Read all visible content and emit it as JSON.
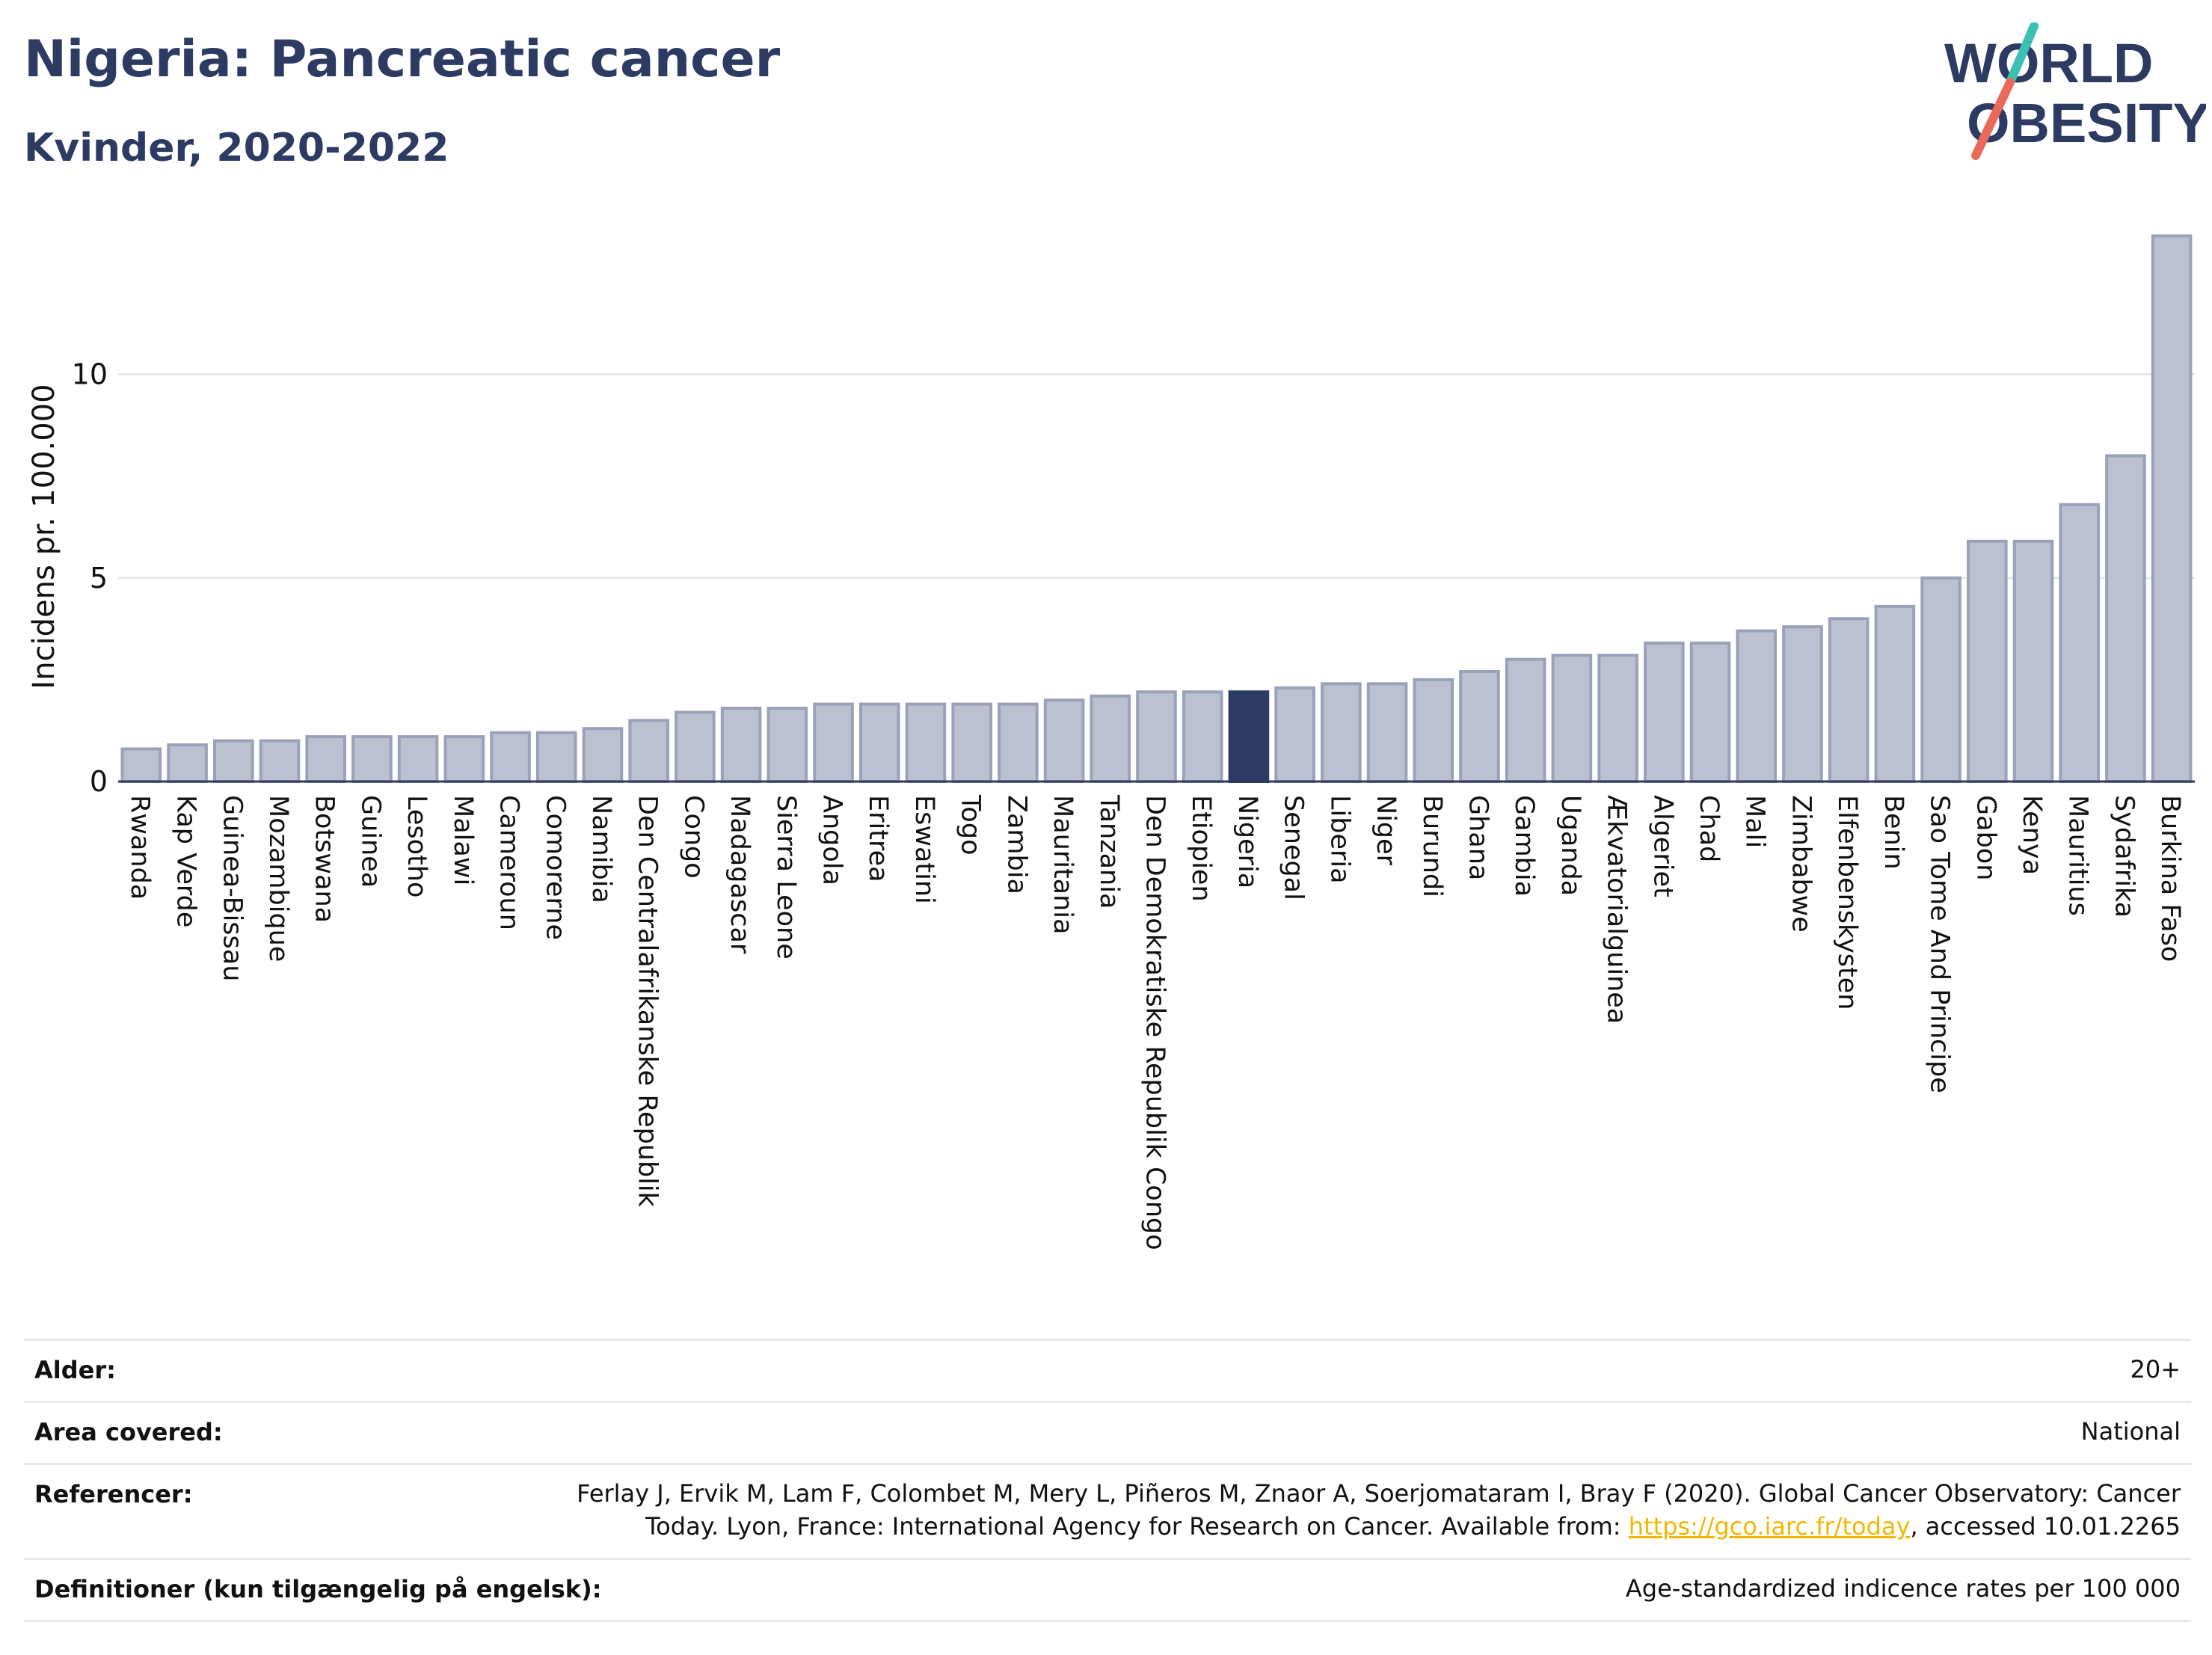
{
  "header": {
    "title": "Nigeria: Pancreatic cancer",
    "subtitle": "Kvinder, 2020-2022"
  },
  "logo": {
    "line1": "WORLD",
    "line2": "OBESITY"
  },
  "colors": {
    "bar": "#bcc1d1",
    "bar_stroke": "#9aa1b9",
    "highlight": "#2d3a62",
    "title": "#2d3a62",
    "logo_teal": "#3dbfb3",
    "logo_coral": "#e96a5b",
    "link": "#f2b705"
  },
  "chart_data": {
    "type": "bar",
    "ylabel": "Incidens pr. 100.000",
    "ylim": [
      0,
      13.5
    ],
    "yticks": [
      0,
      5,
      10
    ],
    "grid": true,
    "highlight": "Nigeria",
    "categories": [
      "Rwanda",
      "Kap Verde",
      "Guinea-Bissau",
      "Mozambique",
      "Botswana",
      "Guinea",
      "Lesotho",
      "Malawi",
      "Cameroun",
      "Comorerne",
      "Namibia",
      "Den Centralafrikanske Republik",
      "Congo",
      "Madagascar",
      "Sierra Leone",
      "Angola",
      "Eritrea",
      "Eswatini",
      "Togo",
      "Zambia",
      "Mauritania",
      "Tanzania",
      "Den Demokratiske Republik Congo",
      "Etiopien",
      "Nigeria",
      "Senegal",
      "Liberia",
      "Niger",
      "Burundi",
      "Ghana",
      "Gambia",
      "Uganda",
      "Ækvatorialguinea",
      "Algeriet",
      "Chad",
      "Mali",
      "Zimbabwe",
      "Elfenbenskysten",
      "Benin",
      "Sao Tome And Principe",
      "Gabon",
      "Kenya",
      "Mauritius",
      "Sydafrika",
      "Burkina Faso"
    ],
    "values": [
      0.8,
      0.9,
      1.0,
      1.0,
      1.1,
      1.1,
      1.1,
      1.1,
      1.2,
      1.2,
      1.3,
      1.5,
      1.7,
      1.8,
      1.8,
      1.9,
      1.9,
      1.9,
      1.9,
      1.9,
      2.0,
      2.1,
      2.2,
      2.2,
      2.2,
      2.3,
      2.4,
      2.4,
      2.5,
      2.7,
      3.0,
      3.1,
      3.1,
      3.4,
      3.4,
      3.7,
      3.8,
      4.0,
      4.3,
      5.0,
      5.9,
      5.9,
      6.8,
      8.0,
      13.4
    ]
  },
  "meta": {
    "age_label": "Alder:",
    "age_value": "20+",
    "area_label": "Area covered:",
    "area_value": "National",
    "ref_label": "Referencer:",
    "ref_line1": "Ferlay J, Ervik M, Lam F, Colombet M, Mery L, Piñeros M, Znaor A, Soerjomataram I, Bray F (2020). Global Cancer Observatory: Cancer",
    "ref_line2_pre": "Today. Lyon, France: International Agency for Research on Cancer. Available from: ",
    "ref_link": "https://gco.iarc.fr/today",
    "ref_line2_post": ", accessed 10.01.2265",
    "def_label": "Definitioner (kun tilgængelig på engelsk):",
    "def_value": "Age-standardized indicence rates per 100 000"
  }
}
